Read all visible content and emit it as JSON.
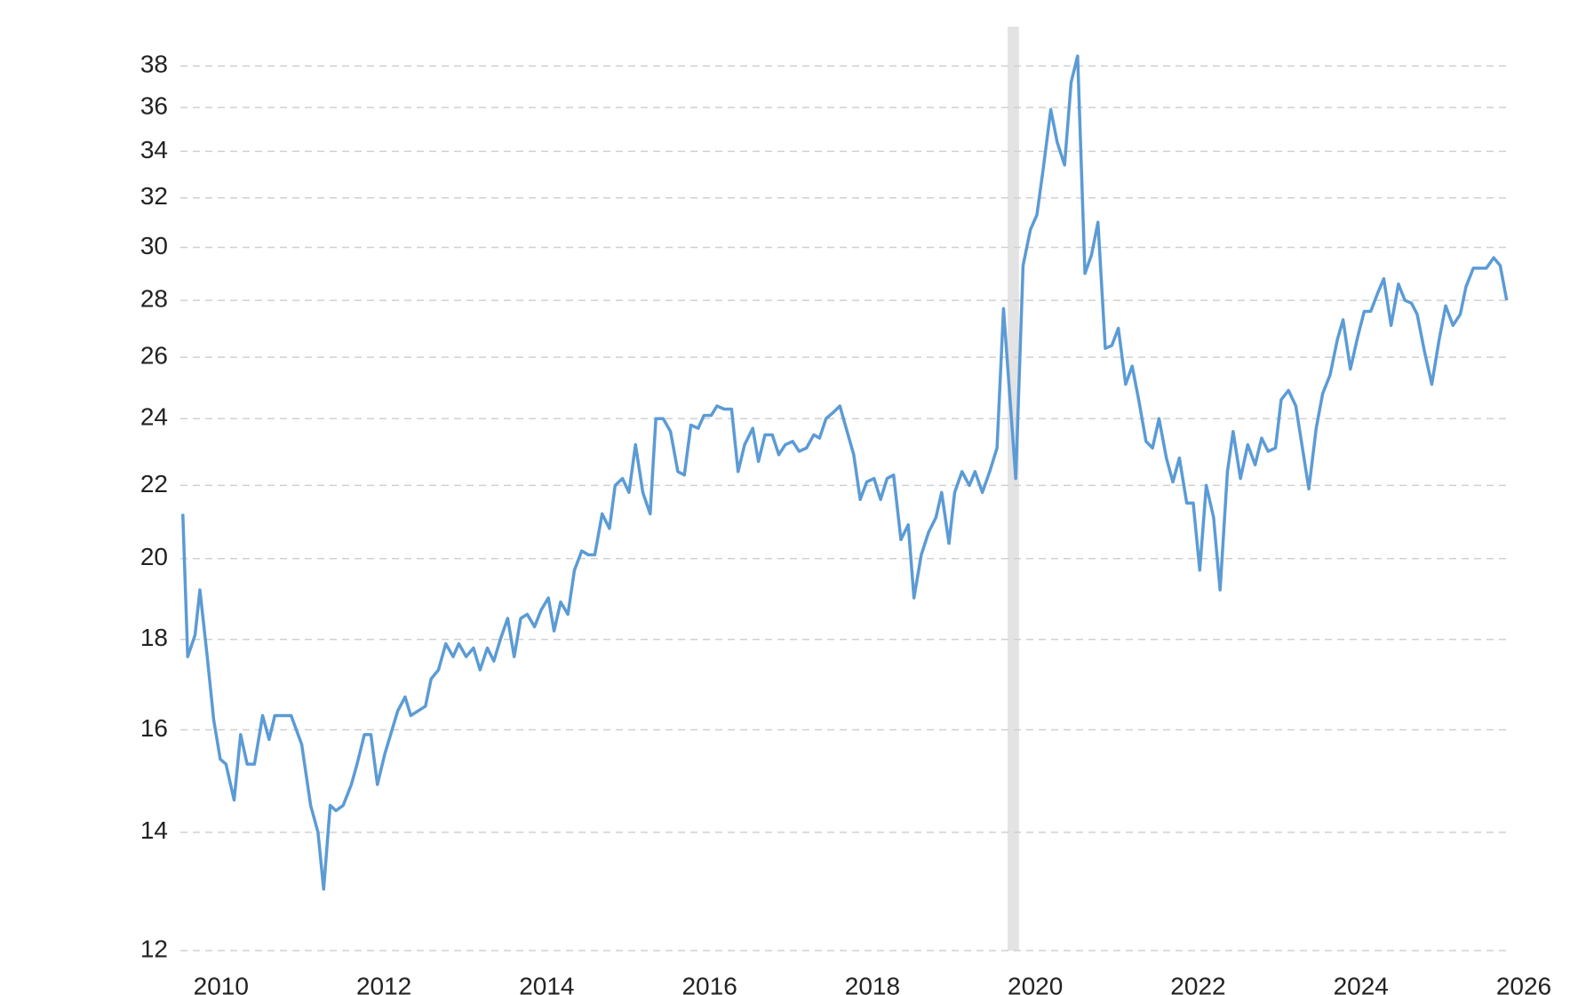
{
  "chart_data": {
    "type": "line",
    "ylog": true,
    "grid": true,
    "xlim": [
      2009.5,
      2026
    ],
    "ylim": [
      12,
      40
    ],
    "xticks": [
      2010,
      2012,
      2014,
      2016,
      2018,
      2020,
      2022,
      2024,
      2026
    ],
    "yticks": [
      12,
      14,
      16,
      18,
      20,
      22,
      24,
      26,
      28,
      30,
      32,
      34,
      36,
      38
    ],
    "shaded_ranges": [
      [
        2019.66,
        2019.8
      ]
    ],
    "x": [
      2009.53,
      2009.59,
      2009.68,
      2009.74,
      2009.83,
      2009.91,
      2009.99,
      2010.06,
      2010.16,
      2010.24,
      2010.32,
      2010.41,
      2010.51,
      2010.59,
      2010.66,
      2010.76,
      2010.86,
      2010.99,
      2011.1,
      2011.19,
      2011.26,
      2011.34,
      2011.41,
      2011.5,
      2011.6,
      2011.67,
      2011.76,
      2011.84,
      2011.92,
      2012.01,
      2012.1,
      2012.17,
      2012.26,
      2012.33,
      2012.42,
      2012.51,
      2012.58,
      2012.67,
      2012.76,
      2012.85,
      2012.92,
      2013.01,
      2013.1,
      2013.18,
      2013.27,
      2013.35,
      2013.43,
      2013.52,
      2013.6,
      2013.68,
      2013.76,
      2013.85,
      2013.93,
      2014.02,
      2014.09,
      2014.17,
      2014.26,
      2014.34,
      2014.43,
      2014.51,
      2014.59,
      2014.68,
      2014.77,
      2014.84,
      2014.93,
      2015.01,
      2015.09,
      2015.18,
      2015.27,
      2015.34,
      2015.43,
      2015.52,
      2015.61,
      2015.69,
      2015.77,
      2015.86,
      2015.93,
      2016.02,
      2016.09,
      2016.18,
      2016.27,
      2016.35,
      2016.43,
      2016.53,
      2016.6,
      2016.68,
      2016.77,
      2016.85,
      2016.93,
      2017.02,
      2017.1,
      2017.19,
      2017.28,
      2017.35,
      2017.43,
      2017.52,
      2017.6,
      2017.77,
      2017.85,
      2017.93,
      2018.02,
      2018.1,
      2018.18,
      2018.26,
      2018.35,
      2018.44,
      2018.51,
      2018.6,
      2018.69,
      2018.78,
      2018.85,
      2018.94,
      2019.01,
      2019.1,
      2019.19,
      2019.26,
      2019.35,
      2019.44,
      2019.53,
      2019.61,
      2019.76,
      2019.85,
      2019.94,
      2020.02,
      2020.1,
      2020.19,
      2020.27,
      2020.36,
      2020.44,
      2020.52,
      2020.61,
      2020.69,
      2020.77,
      2020.86,
      2020.94,
      2021.02,
      2021.11,
      2021.19,
      2021.27,
      2021.36,
      2021.44,
      2021.52,
      2021.61,
      2021.69,
      2021.77,
      2021.86,
      2021.94,
      2022.02,
      2022.1,
      2022.19,
      2022.27,
      2022.36,
      2022.43,
      2022.52,
      2022.61,
      2022.7,
      2022.78,
      2022.86,
      2022.95,
      2023.02,
      2023.11,
      2023.2,
      2023.36,
      2023.45,
      2023.53,
      2023.62,
      2023.71,
      2023.78,
      2023.87,
      2023.96,
      2024.04,
      2024.12,
      2024.21,
      2024.28,
      2024.37,
      2024.46,
      2024.54,
      2024.62,
      2024.69,
      2024.78,
      2024.87,
      2024.96,
      2025.04,
      2025.13,
      2025.22,
      2025.29,
      2025.38,
      2025.47,
      2025.54,
      2025.63,
      2025.71,
      2025.79
    ],
    "series": [
      {
        "color": "#5b9bd5",
        "values": [
          21.2,
          17.6,
          18.1,
          19.2,
          17.6,
          16.2,
          15.4,
          15.3,
          14.6,
          15.9,
          15.3,
          15.3,
          16.3,
          15.8,
          16.3,
          16.3,
          16.3,
          15.7,
          14.5,
          14.0,
          13.0,
          14.5,
          14.4,
          14.5,
          14.9,
          15.3,
          15.9,
          15.9,
          14.9,
          15.5,
          16.0,
          16.4,
          16.7,
          16.3,
          16.4,
          16.5,
          17.1,
          17.3,
          17.9,
          17.6,
          17.9,
          17.6,
          17.8,
          17.3,
          17.8,
          17.5,
          18.0,
          18.5,
          17.6,
          18.5,
          18.6,
          18.3,
          18.7,
          19.0,
          18.2,
          18.9,
          18.6,
          19.7,
          20.2,
          20.1,
          20.1,
          21.2,
          20.8,
          22.0,
          22.2,
          21.8,
          23.2,
          21.8,
          21.2,
          24.0,
          24.0,
          23.6,
          22.4,
          22.3,
          23.8,
          23.7,
          24.1,
          24.1,
          24.4,
          24.3,
          24.3,
          22.4,
          23.2,
          23.7,
          22.7,
          23.5,
          23.5,
          22.9,
          23.2,
          23.3,
          23.0,
          23.1,
          23.5,
          23.4,
          24.0,
          24.2,
          24.4,
          22.9,
          21.6,
          22.1,
          22.2,
          21.6,
          22.2,
          22.3,
          20.5,
          20.9,
          19.0,
          20.1,
          20.7,
          21.1,
          21.8,
          20.4,
          21.8,
          22.4,
          22.0,
          22.4,
          21.8,
          22.4,
          23.1,
          27.7,
          22.2,
          29.3,
          30.7,
          31.3,
          33.3,
          35.9,
          34.4,
          33.4,
          37.2,
          38.5,
          29.0,
          29.7,
          31.0,
          26.3,
          26.4,
          27.0,
          25.1,
          25.7,
          24.6,
          23.3,
          23.1,
          24.0,
          22.8,
          22.1,
          22.8,
          21.5,
          21.5,
          19.7,
          22.0,
          21.1,
          19.2,
          22.4,
          23.6,
          22.2,
          23.2,
          22.6,
          23.4,
          23.0,
          23.1,
          24.6,
          24.9,
          24.4,
          21.9,
          23.7,
          24.8,
          25.4,
          26.6,
          27.3,
          25.6,
          26.7,
          27.6,
          27.6,
          28.3,
          28.8,
          27.1,
          28.6,
          28.0,
          27.9,
          27.5,
          26.2,
          25.1,
          26.6,
          27.8,
          27.1,
          27.5,
          28.5,
          29.2,
          29.2,
          29.2,
          29.6,
          29.3,
          28.0
        ]
      }
    ]
  }
}
